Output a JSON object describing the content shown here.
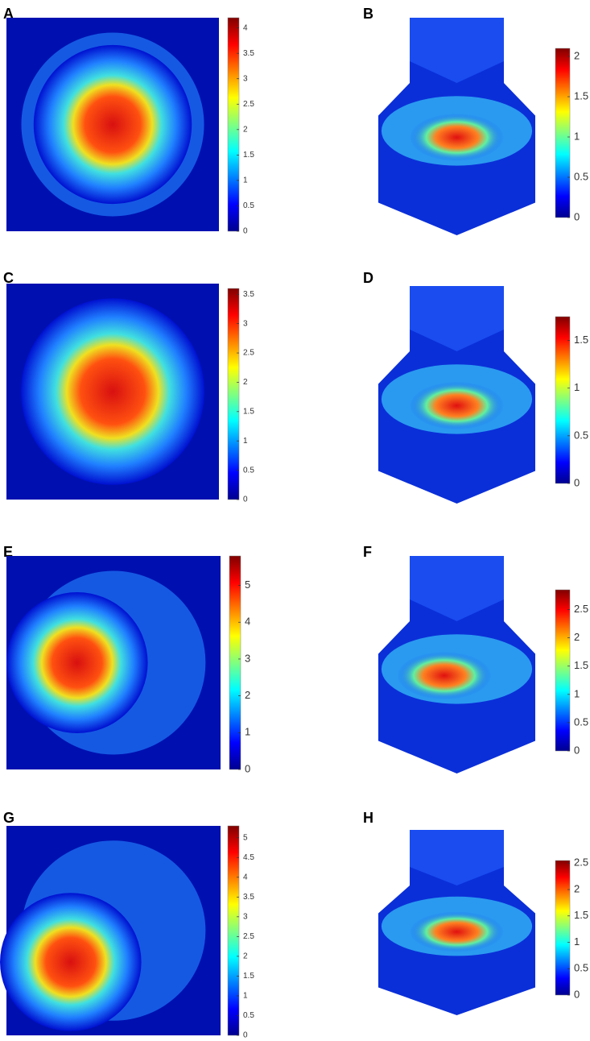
{
  "panels": [
    {
      "label": "A",
      "colorbar": {
        "range": [
          0,
          4.2
        ],
        "ticks": [
          0,
          0.5,
          1,
          1.5,
          2,
          2.5,
          3,
          3.5,
          4
        ]
      }
    },
    {
      "label": "B",
      "colorbar": {
        "range": [
          0,
          2.1
        ],
        "ticks": [
          0,
          0.5,
          1,
          1.5,
          2
        ]
      }
    },
    {
      "label": "C",
      "colorbar": {
        "range": [
          0,
          3.6
        ],
        "ticks": [
          0,
          0.5,
          1,
          1.5,
          2,
          2.5,
          3,
          3.5
        ]
      }
    },
    {
      "label": "D",
      "colorbar": {
        "range": [
          0,
          1.75
        ],
        "ticks": [
          0,
          0.5,
          1,
          1.5
        ]
      }
    },
    {
      "label": "E",
      "colorbar": {
        "range": [
          0,
          5.8
        ],
        "ticks": [
          0,
          1,
          2,
          3,
          4,
          5
        ]
      }
    },
    {
      "label": "F",
      "colorbar": {
        "range": [
          0,
          2.85
        ],
        "ticks": [
          0,
          0.5,
          1,
          1.5,
          2,
          2.5
        ]
      }
    },
    {
      "label": "G",
      "colorbar": {
        "range": [
          0,
          5.3
        ],
        "ticks": [
          0,
          0.5,
          1,
          1.5,
          2,
          2.5,
          3,
          3.5,
          4,
          4.5,
          5
        ]
      }
    },
    {
      "label": "H",
      "colorbar": {
        "range": [
          0,
          2.55
        ],
        "ticks": [
          0,
          0.5,
          1,
          1.5,
          2,
          2.5
        ]
      }
    }
  ]
}
